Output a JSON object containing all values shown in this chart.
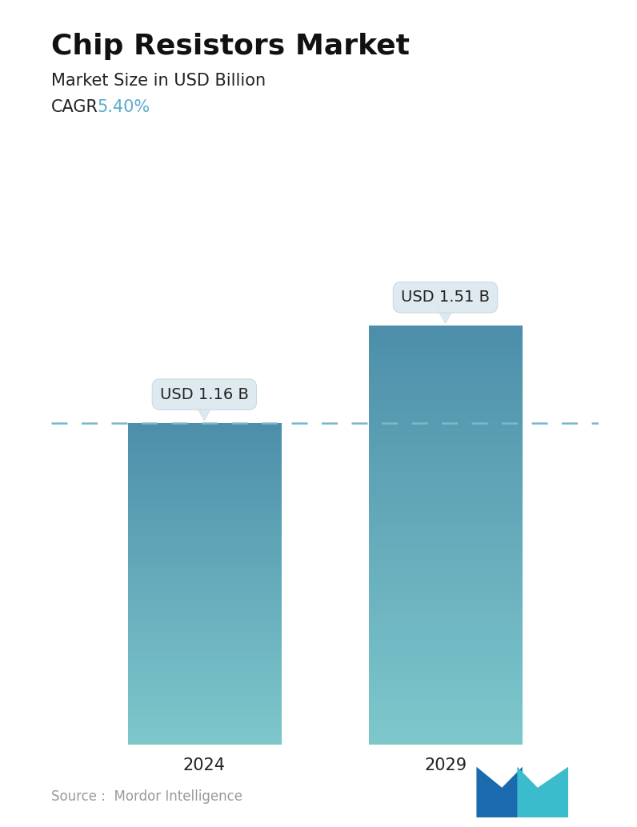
{
  "title": "Chip Resistors Market",
  "subtitle": "Market Size in USD Billion",
  "cagr_label": "CAGR",
  "cagr_value": "5.40%",
  "cagr_color": "#5aabcb",
  "categories": [
    "2024",
    "2029"
  ],
  "values": [
    1.16,
    1.51
  ],
  "bar_labels": [
    "USD 1.16 B",
    "USD 1.51 B"
  ],
  "bar_top_color": "#4d8faa",
  "bar_bottom_color": "#7ec8cc",
  "dashed_line_y": 1.16,
  "dashed_line_color": "#7ab8cc",
  "source_text": "Source :  Mordor Intelligence",
  "source_color": "#999999",
  "background_color": "#ffffff",
  "title_fontsize": 26,
  "subtitle_fontsize": 15,
  "cagr_fontsize": 15,
  "bar_label_fontsize": 14,
  "xlabel_fontsize": 15,
  "source_fontsize": 12,
  "ylim": [
    0,
    1.85
  ],
  "bar_width": 0.28,
  "x_positions": [
    0.28,
    0.72
  ]
}
